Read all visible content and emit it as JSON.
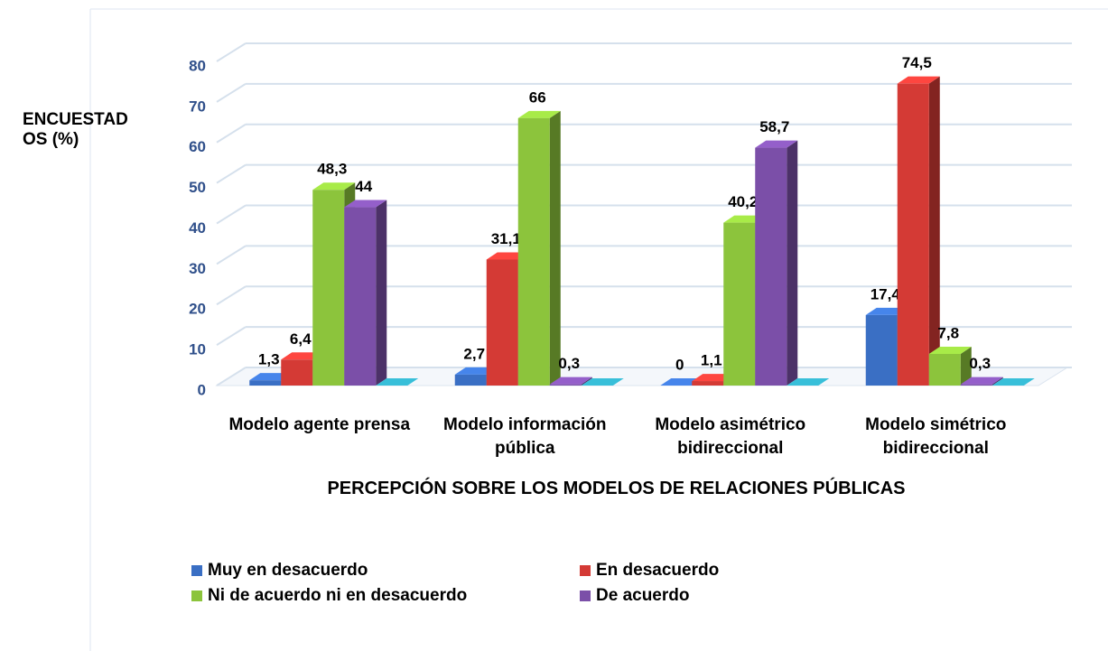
{
  "chart_data": {
    "type": "bar3d",
    "ylabel": "ENCUESTADOS (%)",
    "xlabel": "PERCEPCIÓN SOBRE LOS MODELOS DE RELACIONES PÚBLICAS",
    "categories": [
      "Modelo agente prensa",
      "Modelo información pública",
      "Modelo asimétrico bidireccional",
      "Modelo simétrico bidireccional"
    ],
    "series": [
      {
        "name": "Muy en desacuerdo",
        "color": "#3a6fc4",
        "values": [
          1.3,
          2.7,
          0,
          17.4
        ],
        "value_labels": [
          "1,3",
          "2,7",
          "0",
          "17,4"
        ]
      },
      {
        "name": "En desacuerdo",
        "color": "#d43a35",
        "values": [
          6.4,
          31.1,
          1.1,
          74.5
        ],
        "value_labels": [
          "6,4",
          "31,1",
          "1,1",
          "74,5"
        ]
      },
      {
        "name": "Ni de acuerdo ni en desacuerdo",
        "color": "#8cc43c",
        "values": [
          48.3,
          66,
          40.2,
          7.8
        ],
        "value_labels": [
          "48,3",
          "66",
          "40,2",
          "7,8"
        ]
      },
      {
        "name": "De acuerdo",
        "color": "#7b4fa8",
        "values": [
          44,
          0.3,
          58.7,
          0.3
        ],
        "value_labels": [
          "44",
          "0,3",
          "58,7",
          "0,3"
        ]
      },
      {
        "color": "#2f9fb5",
        "values": [
          0,
          0,
          0,
          0
        ]
      }
    ],
    "ylim": [
      0,
      80
    ],
    "yticks": [
      0,
      10,
      20,
      30,
      40,
      50,
      60,
      70,
      80
    ],
    "grid": true
  }
}
